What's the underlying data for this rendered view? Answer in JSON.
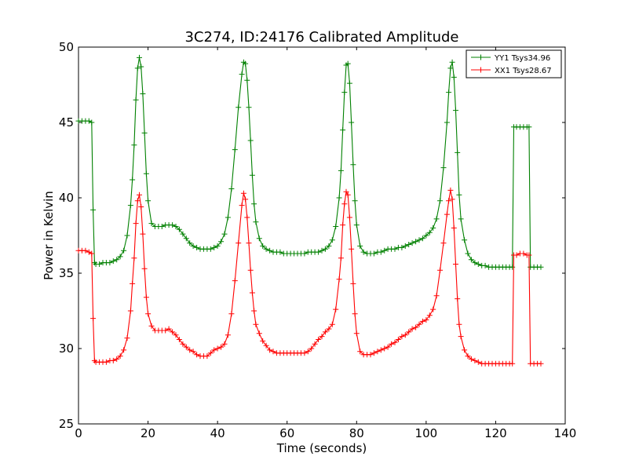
{
  "chart_data": {
    "type": "line",
    "title": "3C274, ID:24176 Calibrated Amplitude",
    "xlabel": "Time (seconds)",
    "ylabel": "Power in Kelvin",
    "xlim": [
      0,
      140
    ],
    "ylim": [
      25,
      50
    ],
    "xticks": [
      "0",
      "20",
      "40",
      "60",
      "80",
      "100",
      "120",
      "140"
    ],
    "yticks": [
      "25",
      "30",
      "35",
      "40",
      "45",
      "50"
    ],
    "grid": false,
    "legend_position": "top-right",
    "marker": "plus",
    "series": [
      {
        "name": "YY1 Tsys34.96",
        "color": "#008000",
        "points": [
          [
            0,
            45.1
          ],
          [
            1,
            45.1
          ],
          [
            2,
            45.1
          ],
          [
            3,
            45.1
          ],
          [
            3.8,
            45.0
          ],
          [
            4.2,
            39.2
          ],
          [
            4.6,
            35.7
          ],
          [
            5,
            35.6
          ],
          [
            6,
            35.6
          ],
          [
            7,
            35.7
          ],
          [
            8,
            35.7
          ],
          [
            9,
            35.7
          ],
          [
            10,
            35.8
          ],
          [
            11,
            35.9
          ],
          [
            12,
            36.1
          ],
          [
            13,
            36.5
          ],
          [
            14,
            37.5
          ],
          [
            15,
            39.5
          ],
          [
            15.5,
            41.2
          ],
          [
            16,
            43.5
          ],
          [
            16.5,
            46.5
          ],
          [
            17,
            48.6
          ],
          [
            17.5,
            49.3
          ],
          [
            18,
            48.7
          ],
          [
            18.5,
            46.9
          ],
          [
            19,
            44.3
          ],
          [
            19.5,
            41.6
          ],
          [
            20,
            39.8
          ],
          [
            21,
            38.3
          ],
          [
            22,
            38.1
          ],
          [
            23,
            38.1
          ],
          [
            24,
            38.1
          ],
          [
            25,
            38.2
          ],
          [
            26,
            38.2
          ],
          [
            27,
            38.2
          ],
          [
            28,
            38.1
          ],
          [
            29,
            37.9
          ],
          [
            30,
            37.6
          ],
          [
            31,
            37.3
          ],
          [
            32,
            37.0
          ],
          [
            33,
            36.8
          ],
          [
            34,
            36.7
          ],
          [
            35,
            36.6
          ],
          [
            36,
            36.6
          ],
          [
            37,
            36.6
          ],
          [
            38,
            36.6
          ],
          [
            39,
            36.7
          ],
          [
            40,
            36.8
          ],
          [
            41,
            37.1
          ],
          [
            42,
            37.6
          ],
          [
            43,
            38.7
          ],
          [
            44,
            40.6
          ],
          [
            45,
            43.2
          ],
          [
            46,
            46.0
          ],
          [
            47,
            48.2
          ],
          [
            47.5,
            49.0
          ],
          [
            48,
            48.9
          ],
          [
            48.5,
            47.8
          ],
          [
            49,
            46.0
          ],
          [
            49.5,
            43.8
          ],
          [
            50,
            41.5
          ],
          [
            50.5,
            39.6
          ],
          [
            51,
            38.4
          ],
          [
            52,
            37.3
          ],
          [
            53,
            36.8
          ],
          [
            54,
            36.6
          ],
          [
            55,
            36.5
          ],
          [
            56,
            36.4
          ],
          [
            57,
            36.4
          ],
          [
            58,
            36.4
          ],
          [
            59,
            36.3
          ],
          [
            60,
            36.3
          ],
          [
            61,
            36.3
          ],
          [
            62,
            36.3
          ],
          [
            63,
            36.3
          ],
          [
            64,
            36.3
          ],
          [
            65,
            36.3
          ],
          [
            66,
            36.4
          ],
          [
            67,
            36.4
          ],
          [
            68,
            36.4
          ],
          [
            69,
            36.4
          ],
          [
            70,
            36.5
          ],
          [
            71,
            36.6
          ],
          [
            72,
            36.8
          ],
          [
            73,
            37.2
          ],
          [
            74,
            38.1
          ],
          [
            75,
            40.0
          ],
          [
            75.5,
            41.8
          ],
          [
            76,
            44.5
          ],
          [
            76.5,
            47.0
          ],
          [
            77,
            48.8
          ],
          [
            77.5,
            48.9
          ],
          [
            78,
            47.6
          ],
          [
            78.5,
            45.0
          ],
          [
            79,
            42.2
          ],
          [
            79.5,
            39.8
          ],
          [
            80,
            38.2
          ],
          [
            81,
            36.8
          ],
          [
            82,
            36.4
          ],
          [
            83,
            36.3
          ],
          [
            84,
            36.3
          ],
          [
            85,
            36.3
          ],
          [
            86,
            36.4
          ],
          [
            87,
            36.4
          ],
          [
            88,
            36.5
          ],
          [
            89,
            36.6
          ],
          [
            90,
            36.6
          ],
          [
            91,
            36.6
          ],
          [
            92,
            36.7
          ],
          [
            93,
            36.7
          ],
          [
            94,
            36.8
          ],
          [
            95,
            36.9
          ],
          [
            96,
            37.0
          ],
          [
            97,
            37.1
          ],
          [
            98,
            37.2
          ],
          [
            99,
            37.3
          ],
          [
            100,
            37.5
          ],
          [
            101,
            37.7
          ],
          [
            102,
            38.0
          ],
          [
            103,
            38.6
          ],
          [
            104,
            39.8
          ],
          [
            105,
            42.0
          ],
          [
            106,
            45.0
          ],
          [
            106.5,
            47.0
          ],
          [
            107,
            48.6
          ],
          [
            107.5,
            49.0
          ],
          [
            108,
            48.0
          ],
          [
            108.5,
            45.8
          ],
          [
            109,
            43.0
          ],
          [
            109.5,
            40.2
          ],
          [
            110,
            38.6
          ],
          [
            111,
            37.2
          ],
          [
            112,
            36.3
          ],
          [
            113,
            35.9
          ],
          [
            114,
            35.7
          ],
          [
            115,
            35.6
          ],
          [
            116,
            35.5
          ],
          [
            117,
            35.5
          ],
          [
            118,
            35.4
          ],
          [
            119,
            35.4
          ],
          [
            120,
            35.4
          ],
          [
            121,
            35.4
          ],
          [
            122,
            35.4
          ],
          [
            123,
            35.4
          ],
          [
            124,
            35.4
          ],
          [
            124.8,
            35.4
          ],
          [
            125.2,
            44.7
          ],
          [
            126,
            44.7
          ],
          [
            127,
            44.7
          ],
          [
            128,
            44.7
          ],
          [
            129,
            44.7
          ],
          [
            129.6,
            44.7
          ],
          [
            130,
            35.4
          ],
          [
            131,
            35.4
          ],
          [
            132,
            35.4
          ],
          [
            133,
            35.4
          ]
        ]
      },
      {
        "name": "XX1 Tsys28.67",
        "color": "#ff0000",
        "points": [
          [
            0,
            36.5
          ],
          [
            1,
            36.5
          ],
          [
            2,
            36.5
          ],
          [
            3,
            36.4
          ],
          [
            3.8,
            36.3
          ],
          [
            4.2,
            32.0
          ],
          [
            4.6,
            29.2
          ],
          [
            5,
            29.1
          ],
          [
            6,
            29.1
          ],
          [
            7,
            29.1
          ],
          [
            8,
            29.1
          ],
          [
            9,
            29.2
          ],
          [
            10,
            29.2
          ],
          [
            11,
            29.3
          ],
          [
            12,
            29.5
          ],
          [
            13,
            29.9
          ],
          [
            14,
            30.7
          ],
          [
            15,
            32.5
          ],
          [
            15.5,
            34.3
          ],
          [
            16,
            36.0
          ],
          [
            16.5,
            38.3
          ],
          [
            17,
            39.8
          ],
          [
            17.5,
            40.2
          ],
          [
            18,
            39.4
          ],
          [
            18.5,
            37.6
          ],
          [
            19,
            35.3
          ],
          [
            19.5,
            33.4
          ],
          [
            20,
            32.3
          ],
          [
            21,
            31.5
          ],
          [
            22,
            31.2
          ],
          [
            23,
            31.2
          ],
          [
            24,
            31.2
          ],
          [
            25,
            31.2
          ],
          [
            26,
            31.3
          ],
          [
            27,
            31.1
          ],
          [
            28,
            30.9
          ],
          [
            29,
            30.6
          ],
          [
            30,
            30.3
          ],
          [
            31,
            30.1
          ],
          [
            32,
            29.9
          ],
          [
            33,
            29.8
          ],
          [
            34,
            29.6
          ],
          [
            35,
            29.5
          ],
          [
            36,
            29.5
          ],
          [
            37,
            29.5
          ],
          [
            38,
            29.7
          ],
          [
            39,
            29.9
          ],
          [
            40,
            30.0
          ],
          [
            41,
            30.1
          ],
          [
            42,
            30.3
          ],
          [
            43,
            30.9
          ],
          [
            44,
            32.3
          ],
          [
            45,
            34.5
          ],
          [
            46,
            37.0
          ],
          [
            47,
            39.5
          ],
          [
            47.5,
            40.3
          ],
          [
            48,
            39.9
          ],
          [
            48.5,
            38.7
          ],
          [
            49,
            37.0
          ],
          [
            49.5,
            35.2
          ],
          [
            50,
            33.7
          ],
          [
            50.5,
            32.5
          ],
          [
            51,
            31.6
          ],
          [
            52,
            31.0
          ],
          [
            53,
            30.5
          ],
          [
            54,
            30.2
          ],
          [
            55,
            29.9
          ],
          [
            56,
            29.8
          ],
          [
            57,
            29.7
          ],
          [
            58,
            29.7
          ],
          [
            59,
            29.7
          ],
          [
            60,
            29.7
          ],
          [
            61,
            29.7
          ],
          [
            62,
            29.7
          ],
          [
            63,
            29.7
          ],
          [
            64,
            29.7
          ],
          [
            65,
            29.7
          ],
          [
            66,
            29.8
          ],
          [
            67,
            30.0
          ],
          [
            68,
            30.3
          ],
          [
            69,
            30.6
          ],
          [
            70,
            30.8
          ],
          [
            71,
            31.1
          ],
          [
            72,
            31.3
          ],
          [
            73,
            31.6
          ],
          [
            74,
            32.6
          ],
          [
            75,
            34.6
          ],
          [
            75.5,
            36.0
          ],
          [
            76,
            38.2
          ],
          [
            76.5,
            39.6
          ],
          [
            77,
            40.4
          ],
          [
            77.5,
            40.2
          ],
          [
            78,
            38.7
          ],
          [
            78.5,
            36.6
          ],
          [
            79,
            34.3
          ],
          [
            79.5,
            32.3
          ],
          [
            80,
            31.0
          ],
          [
            81,
            29.8
          ],
          [
            82,
            29.6
          ],
          [
            83,
            29.6
          ],
          [
            84,
            29.6
          ],
          [
            85,
            29.7
          ],
          [
            86,
            29.8
          ],
          [
            87,
            29.9
          ],
          [
            88,
            30.0
          ],
          [
            89,
            30.1
          ],
          [
            90,
            30.3
          ],
          [
            91,
            30.4
          ],
          [
            92,
            30.6
          ],
          [
            93,
            30.8
          ],
          [
            94,
            30.9
          ],
          [
            95,
            31.1
          ],
          [
            96,
            31.3
          ],
          [
            97,
            31.4
          ],
          [
            98,
            31.6
          ],
          [
            99,
            31.8
          ],
          [
            100,
            31.9
          ],
          [
            101,
            32.2
          ],
          [
            102,
            32.6
          ],
          [
            103,
            33.5
          ],
          [
            104,
            35.2
          ],
          [
            105,
            37.0
          ],
          [
            106,
            38.9
          ],
          [
            106.5,
            39.8
          ],
          [
            107,
            40.5
          ],
          [
            107.5,
            39.9
          ],
          [
            108,
            38.0
          ],
          [
            108.5,
            35.6
          ],
          [
            109,
            33.3
          ],
          [
            109.5,
            31.6
          ],
          [
            110,
            30.8
          ],
          [
            111,
            29.9
          ],
          [
            112,
            29.5
          ],
          [
            113,
            29.3
          ],
          [
            114,
            29.2
          ],
          [
            115,
            29.1
          ],
          [
            116,
            29.0
          ],
          [
            117,
            29.0
          ],
          [
            118,
            29.0
          ],
          [
            119,
            29.0
          ],
          [
            120,
            29.0
          ],
          [
            121,
            29.0
          ],
          [
            122,
            29.0
          ],
          [
            123,
            29.0
          ],
          [
            124,
            29.0
          ],
          [
            124.8,
            29.0
          ],
          [
            125.2,
            36.2
          ],
          [
            126,
            36.2
          ],
          [
            127,
            36.3
          ],
          [
            128,
            36.3
          ],
          [
            129,
            36.2
          ],
          [
            129.6,
            36.2
          ],
          [
            130,
            29.0
          ],
          [
            131,
            29.0
          ],
          [
            132,
            29.0
          ],
          [
            133,
            29.0
          ]
        ]
      }
    ]
  }
}
